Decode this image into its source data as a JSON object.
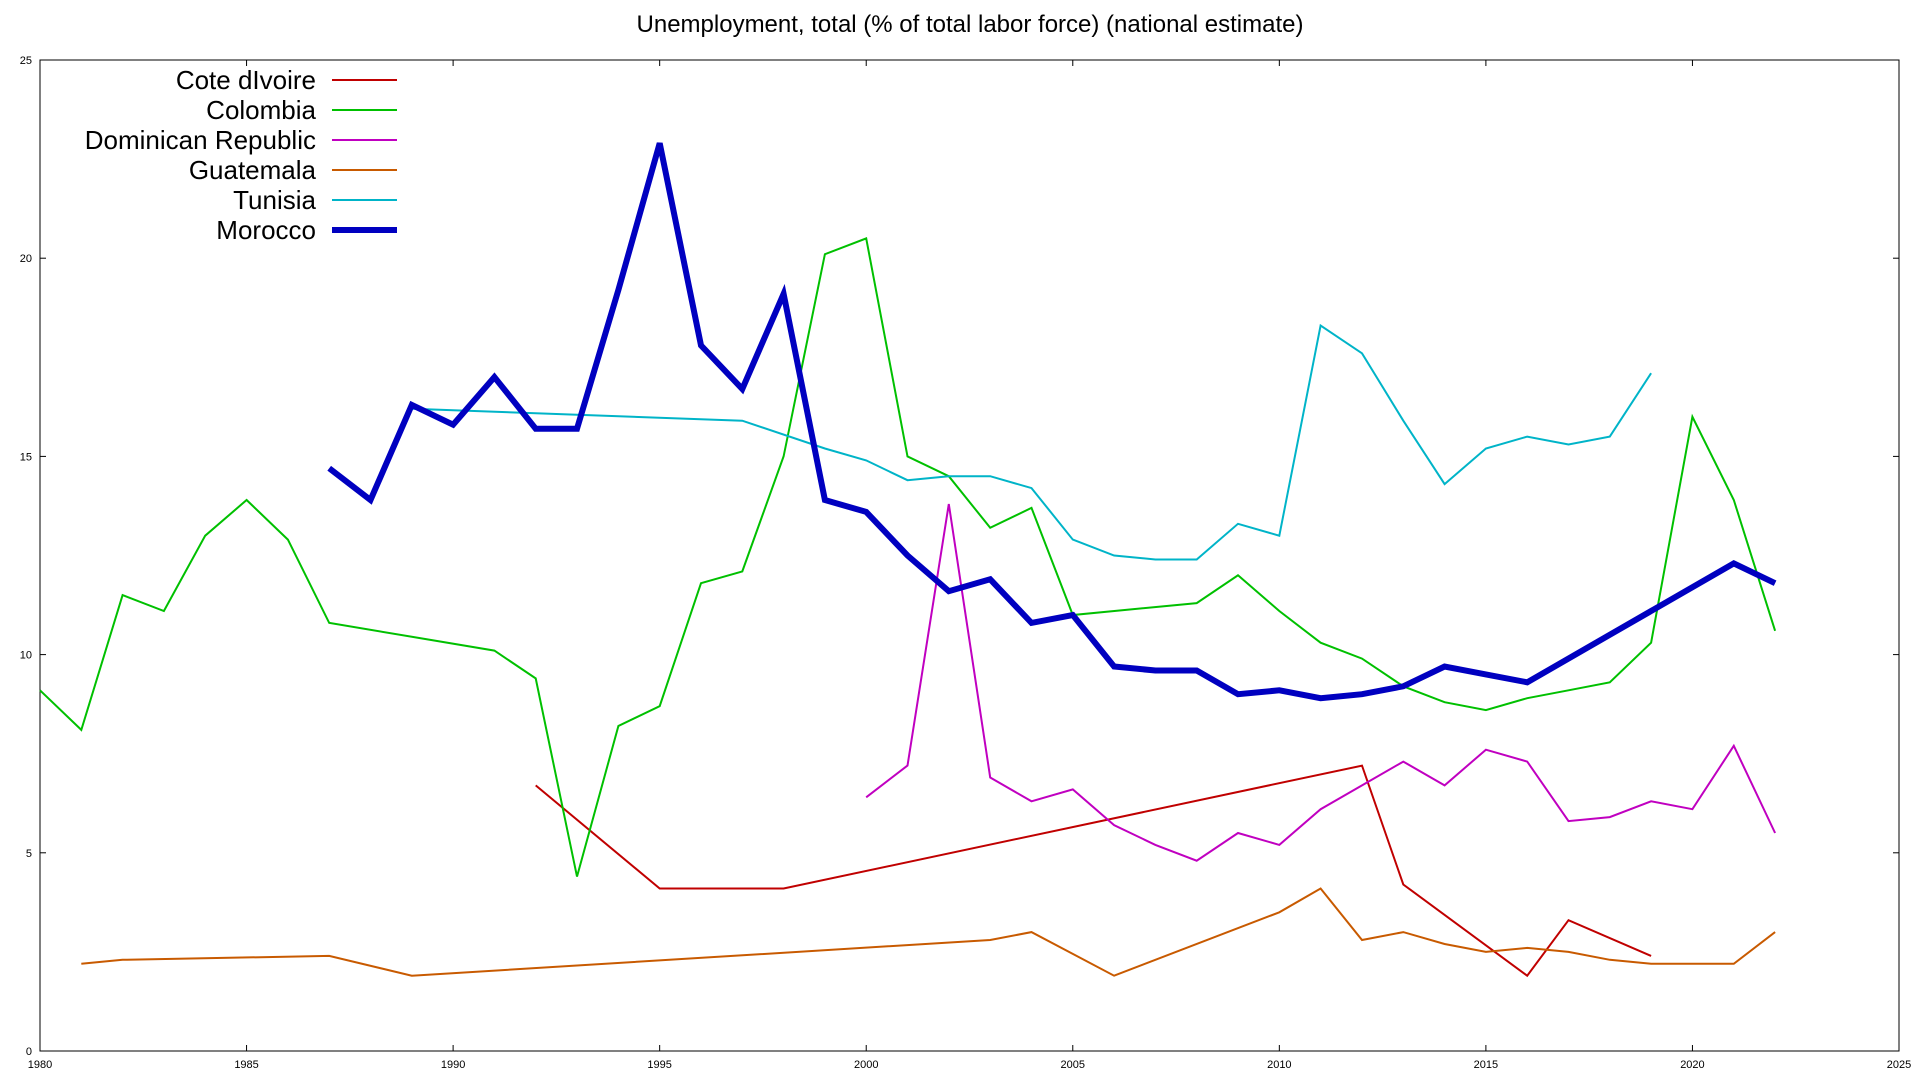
{
  "chart_data": {
    "type": "line",
    "title": "Unemployment, total (% of total labor force) (national estimate)",
    "xlabel": "",
    "ylabel": "",
    "xlim": [
      1980,
      2025
    ],
    "ylim": [
      0,
      25
    ],
    "x_ticks": [
      1980,
      1985,
      1990,
      1995,
      2000,
      2005,
      2010,
      2015,
      2020,
      2025
    ],
    "y_ticks": [
      0,
      5,
      10,
      15,
      20,
      25
    ],
    "grid": false,
    "legend_position": "top-left",
    "series": [
      {
        "name": "Cote dIvoire",
        "color": "#c00000",
        "width": 2,
        "points": [
          [
            1992,
            6.7
          ],
          [
            1995,
            4.1
          ],
          [
            1998,
            4.1
          ],
          [
            2012,
            7.2
          ],
          [
            2013,
            4.2
          ],
          [
            2016,
            1.9
          ],
          [
            2017,
            3.3
          ],
          [
            2019,
            2.4
          ]
        ]
      },
      {
        "name": "Colombia",
        "color": "#00c000",
        "width": 2,
        "points": [
          [
            1980,
            9.1
          ],
          [
            1981,
            8.1
          ],
          [
            1982,
            11.5
          ],
          [
            1983,
            11.1
          ],
          [
            1984,
            13.0
          ],
          [
            1985,
            13.9
          ],
          [
            1986,
            12.9
          ],
          [
            1987,
            10.8
          ],
          [
            1991,
            10.1
          ],
          [
            1992,
            9.4
          ],
          [
            1993,
            4.4
          ],
          [
            1994,
            8.2
          ],
          [
            1995,
            8.7
          ],
          [
            1996,
            11.8
          ],
          [
            1997,
            12.1
          ],
          [
            1998,
            15.0
          ],
          [
            1999,
            20.1
          ],
          [
            2000,
            20.5
          ],
          [
            2001,
            15.0
          ],
          [
            2002,
            14.5
          ],
          [
            2003,
            13.2
          ],
          [
            2004,
            13.7
          ],
          [
            2005,
            11.0
          ],
          [
            2008,
            11.3
          ],
          [
            2009,
            12.0
          ],
          [
            2010,
            11.1
          ],
          [
            2011,
            10.3
          ],
          [
            2012,
            9.9
          ],
          [
            2013,
            9.2
          ],
          [
            2014,
            8.8
          ],
          [
            2015,
            8.6
          ],
          [
            2016,
            8.9
          ],
          [
            2017,
            9.1
          ],
          [
            2018,
            9.3
          ],
          [
            2019,
            10.3
          ],
          [
            2020,
            16.0
          ],
          [
            2021,
            13.9
          ],
          [
            2022,
            10.6
          ]
        ]
      },
      {
        "name": "Dominican Republic",
        "color": "#c000c0",
        "width": 2,
        "points": [
          [
            2000,
            6.4
          ],
          [
            2001,
            7.2
          ],
          [
            2002,
            13.8
          ],
          [
            2003,
            6.9
          ],
          [
            2004,
            6.3
          ],
          [
            2005,
            6.6
          ],
          [
            2006,
            5.7
          ],
          [
            2007,
            5.2
          ],
          [
            2008,
            4.8
          ],
          [
            2009,
            5.5
          ],
          [
            2010,
            5.2
          ],
          [
            2011,
            6.1
          ],
          [
            2012,
            6.7
          ],
          [
            2013,
            7.3
          ],
          [
            2014,
            6.7
          ],
          [
            2015,
            7.6
          ],
          [
            2016,
            7.3
          ],
          [
            2017,
            5.8
          ],
          [
            2018,
            5.9
          ],
          [
            2019,
            6.3
          ],
          [
            2020,
            6.1
          ],
          [
            2021,
            7.7
          ],
          [
            2022,
            5.5
          ]
        ]
      },
      {
        "name": "Guatemala",
        "color": "#c85a00",
        "width": 2,
        "points": [
          [
            1981,
            2.2
          ],
          [
            1982,
            2.3
          ],
          [
            1987,
            2.4
          ],
          [
            1989,
            1.9
          ],
          [
            2003,
            2.8
          ],
          [
            2004,
            3.0
          ],
          [
            2006,
            1.9
          ],
          [
            2010,
            3.5
          ],
          [
            2011,
            4.1
          ],
          [
            2012,
            2.8
          ],
          [
            2013,
            3.0
          ],
          [
            2014,
            2.7
          ],
          [
            2015,
            2.5
          ],
          [
            2016,
            2.6
          ],
          [
            2017,
            2.5
          ],
          [
            2018,
            2.3
          ],
          [
            2019,
            2.2
          ],
          [
            2021,
            2.2
          ],
          [
            2022,
            3.0
          ]
        ]
      },
      {
        "name": "Tunisia",
        "color": "#00b4c8",
        "width": 2,
        "points": [
          [
            1989,
            16.2
          ],
          [
            1997,
            15.9
          ],
          [
            1999,
            15.2
          ],
          [
            2000,
            14.9
          ],
          [
            2001,
            14.4
          ],
          [
            2002,
            14.5
          ],
          [
            2003,
            14.5
          ],
          [
            2004,
            14.2
          ],
          [
            2005,
            12.9
          ],
          [
            2006,
            12.5
          ],
          [
            2007,
            12.4
          ],
          [
            2008,
            12.4
          ],
          [
            2009,
            13.3
          ],
          [
            2010,
            13.0
          ],
          [
            2011,
            18.3
          ],
          [
            2012,
            17.6
          ],
          [
            2013,
            15.9
          ],
          [
            2014,
            14.3
          ],
          [
            2015,
            15.2
          ],
          [
            2016,
            15.5
          ],
          [
            2017,
            15.3
          ],
          [
            2018,
            15.5
          ],
          [
            2019,
            17.1
          ]
        ]
      },
      {
        "name": "Morocco",
        "color": "#0000c0",
        "width": 6,
        "points": [
          [
            1987,
            14.7
          ],
          [
            1988,
            13.9
          ],
          [
            1989,
            16.3
          ],
          [
            1990,
            15.8
          ],
          [
            1991,
            17.0
          ],
          [
            1992,
            15.7
          ],
          [
            1993,
            15.7
          ],
          [
            1994,
            19.2
          ],
          [
            1995,
            22.9
          ],
          [
            1996,
            17.8
          ],
          [
            1997,
            16.7
          ],
          [
            1998,
            19.1
          ],
          [
            1999,
            13.9
          ],
          [
            2000,
            13.6
          ],
          [
            2001,
            12.5
          ],
          [
            2002,
            11.6
          ],
          [
            2003,
            11.9
          ],
          [
            2004,
            10.8
          ],
          [
            2005,
            11.0
          ],
          [
            2006,
            9.7
          ],
          [
            2007,
            9.6
          ],
          [
            2008,
            9.6
          ],
          [
            2009,
            9.0
          ],
          [
            2010,
            9.1
          ],
          [
            2011,
            8.9
          ],
          [
            2012,
            9.0
          ],
          [
            2013,
            9.2
          ],
          [
            2014,
            9.7
          ],
          [
            2015,
            9.5
          ],
          [
            2016,
            9.3
          ],
          [
            2021,
            12.3
          ],
          [
            2022,
            11.8
          ]
        ]
      }
    ]
  }
}
